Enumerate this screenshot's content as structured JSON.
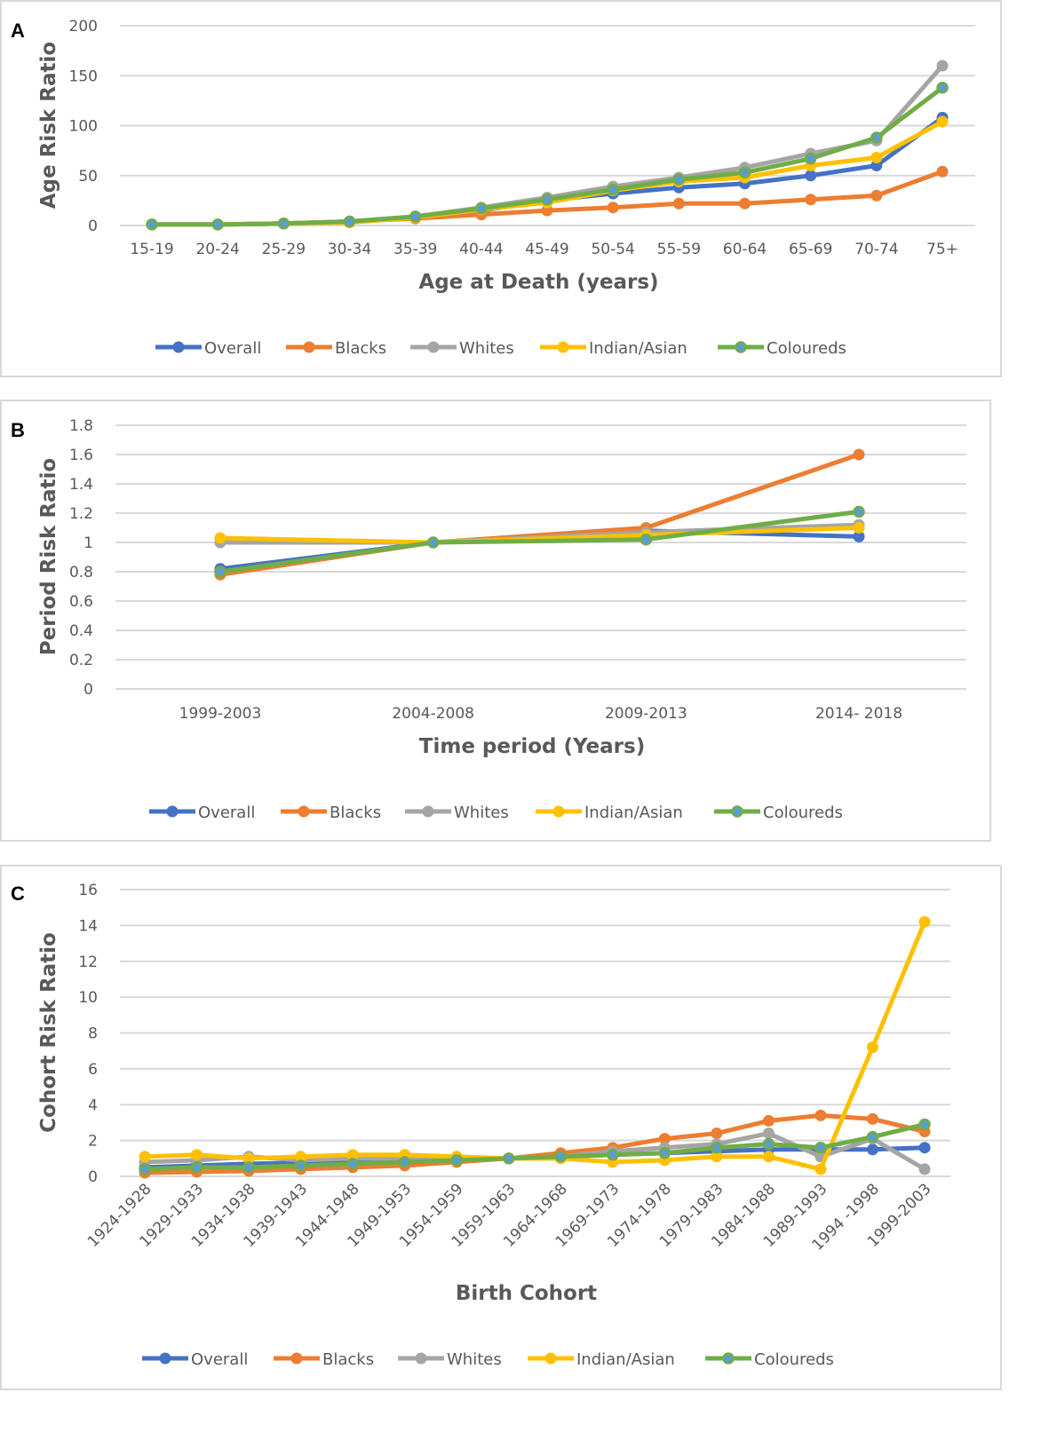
{
  "chart_data": [
    {
      "type": "line",
      "panel_label": "A",
      "title": "",
      "xlabel": "Age  at Death (years)",
      "ylabel": "Age  Risk Ratio",
      "ylim": [
        0,
        200
      ],
      "yticks": [
        0,
        50,
        100,
        150,
        200
      ],
      "grid": true,
      "legend_position": "bottom",
      "categories": [
        "15-19",
        "20-24",
        "25-29",
        "30-34",
        "35-39",
        "40-44",
        "45-49",
        "50-54",
        "55-59",
        "60-64",
        "65-69",
        "70-74",
        "75+"
      ],
      "series": [
        {
          "name": "Overall",
          "color": "#4472C4",
          "values": [
            1,
            1,
            2,
            4,
            8,
            15,
            25,
            32,
            38,
            42,
            50,
            60,
            108
          ]
        },
        {
          "name": "Blacks",
          "color": "#ED7D31",
          "values": [
            1,
            1,
            2,
            4,
            7,
            11,
            15,
            18,
            22,
            22,
            26,
            30,
            54
          ]
        },
        {
          "name": "Whites",
          "color": "#A5A5A5",
          "values": [
            1,
            1,
            2,
            4,
            9,
            18,
            28,
            39,
            48,
            58,
            72,
            85,
            160
          ]
        },
        {
          "name": "Indian/Asian",
          "color": "#FFC000",
          "values": [
            1,
            1,
            2,
            3,
            8,
            16,
            23,
            35,
            44,
            48,
            60,
            68,
            104
          ]
        },
        {
          "name": "Coloureds",
          "color": "#70AD47",
          "values": [
            1,
            1,
            2,
            4,
            9,
            17,
            26,
            36,
            46,
            53,
            67,
            88,
            138
          ]
        }
      ]
    },
    {
      "type": "line",
      "panel_label": "B",
      "title": "",
      "xlabel": "Time period (Years)",
      "ylabel": "Period Risk Ratio",
      "ylim": [
        0,
        1.8
      ],
      "yticks": [
        0,
        0.2,
        0.4,
        0.6,
        0.8,
        1,
        1.2,
        1.4,
        1.6,
        1.8
      ],
      "grid": true,
      "legend_position": "bottom",
      "categories": [
        "1999-2003",
        "2004-2008",
        "2009-2013",
        "2014- 2018"
      ],
      "series": [
        {
          "name": "Overall",
          "color": "#4472C4",
          "values": [
            0.82,
            1,
            1.08,
            1.04
          ]
        },
        {
          "name": "Blacks",
          "color": "#ED7D31",
          "values": [
            0.78,
            1,
            1.1,
            1.6
          ]
        },
        {
          "name": "Whites",
          "color": "#A5A5A5",
          "values": [
            1.0,
            1,
            1.07,
            1.12
          ]
        },
        {
          "name": "Indian/Asian",
          "color": "#FFC000",
          "values": [
            1.03,
            1,
            1.05,
            1.1
          ]
        },
        {
          "name": "Coloureds",
          "color": "#70AD47",
          "values": [
            0.8,
            1,
            1.02,
            1.21
          ]
        }
      ]
    },
    {
      "type": "line",
      "panel_label": "C",
      "title": "",
      "xlabel": "Birth Cohort",
      "ylabel": "Cohort Risk Ratio",
      "ylim": [
        0,
        16
      ],
      "yticks": [
        0,
        2,
        4,
        6,
        8,
        10,
        12,
        14,
        16
      ],
      "grid": true,
      "legend_position": "bottom",
      "categories": [
        "1924-1928",
        "1929-1933",
        "1934-1938",
        "1939-1943",
        "1944-1948",
        "1949-1953",
        "1954-1959",
        "1959-1963",
        "1964-1968",
        "1969-1973",
        "1974-1978",
        "1979-1983",
        "1984-1988",
        "1989-1993",
        "1994 -1998",
        "1999-2003"
      ],
      "series": [
        {
          "name": "Overall",
          "color": "#4472C4",
          "values": [
            0.5,
            0.6,
            0.7,
            0.75,
            0.8,
            0.85,
            0.9,
            1,
            1.1,
            1.2,
            1.3,
            1.4,
            1.5,
            1.5,
            1.5,
            1.6
          ]
        },
        {
          "name": "Blacks",
          "color": "#ED7D31",
          "values": [
            0.2,
            0.25,
            0.3,
            0.4,
            0.5,
            0.6,
            0.8,
            1,
            1.3,
            1.6,
            2.1,
            2.4,
            3.1,
            3.4,
            3.2,
            2.5
          ]
        },
        {
          "name": "Whites",
          "color": "#A5A5A5",
          "values": [
            0.8,
            0.9,
            1.1,
            0.9,
            1.0,
            1.0,
            1.0,
            1,
            1.1,
            1.4,
            1.6,
            1.8,
            2.4,
            1.1,
            2.1,
            0.4
          ]
        },
        {
          "name": "Indian/Asian",
          "color": "#FFC000",
          "values": [
            1.1,
            1.2,
            1.0,
            1.1,
            1.2,
            1.2,
            1.1,
            1,
            1.0,
            0.8,
            0.9,
            1.1,
            1.1,
            0.4,
            7.2,
            14.2
          ]
        },
        {
          "name": "Coloureds",
          "color": "#70AD47",
          "values": [
            0.4,
            0.5,
            0.5,
            0.6,
            0.7,
            0.8,
            0.9,
            1,
            1.1,
            1.2,
            1.3,
            1.6,
            1.8,
            1.6,
            2.2,
            2.9
          ]
        }
      ]
    }
  ]
}
